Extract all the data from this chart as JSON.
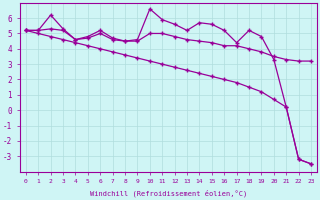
{
  "xlabel": "Windchill (Refroidissement éolien,°C)",
  "x": [
    0,
    1,
    2,
    3,
    4,
    5,
    6,
    7,
    8,
    9,
    10,
    11,
    12,
    13,
    14,
    15,
    16,
    17,
    18,
    19,
    20,
    21,
    22,
    23
  ],
  "line1_straight": [
    5.2,
    5.0,
    4.8,
    4.6,
    4.4,
    4.2,
    4.0,
    3.8,
    3.6,
    3.4,
    3.2,
    3.0,
    2.8,
    2.6,
    2.4,
    2.2,
    2.0,
    1.8,
    1.5,
    1.2,
    0.7,
    0.2,
    -3.2,
    -3.5
  ],
  "line2_high": [
    5.2,
    5.2,
    6.2,
    5.3,
    4.6,
    4.8,
    5.2,
    4.7,
    4.5,
    4.6,
    6.6,
    5.9,
    5.6,
    5.2,
    5.7,
    5.6,
    5.2,
    4.4,
    5.2,
    4.8,
    3.3,
    0.2,
    -3.2,
    -3.5
  ],
  "line3_mid": [
    5.2,
    5.2,
    5.3,
    5.2,
    4.6,
    4.7,
    5.0,
    4.6,
    4.5,
    4.5,
    5.0,
    5.0,
    4.8,
    4.6,
    4.5,
    4.4,
    4.2,
    4.2,
    4.0,
    3.8,
    3.5,
    3.3,
    3.2,
    3.2
  ],
  "color": "#990099",
  "background_color": "#cff5f5",
  "grid_color": "#b0dede",
  "ylim": [
    -4,
    7
  ],
  "yticks": [
    -3,
    -2,
    -1,
    0,
    1,
    2,
    3,
    4,
    5,
    6
  ],
  "xticks": [
    0,
    1,
    2,
    3,
    4,
    5,
    6,
    7,
    8,
    9,
    10,
    11,
    12,
    13,
    14,
    15,
    16,
    17,
    18,
    19,
    20,
    21,
    22,
    23
  ],
  "marker": "+"
}
